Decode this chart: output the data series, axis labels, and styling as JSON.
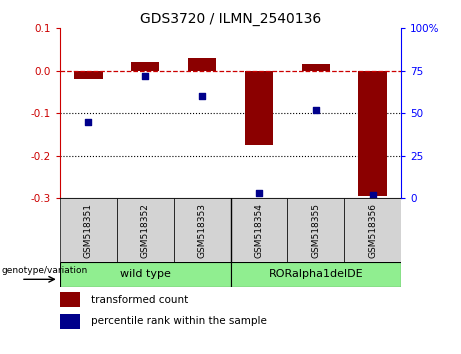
{
  "title": "GDS3720 / ILMN_2540136",
  "samples": [
    "GSM518351",
    "GSM518352",
    "GSM518353",
    "GSM518354",
    "GSM518355",
    "GSM518356"
  ],
  "transformed_count": [
    -0.02,
    0.02,
    0.03,
    -0.175,
    0.015,
    -0.295
  ],
  "percentile_rank": [
    45,
    72,
    60,
    3,
    52,
    2
  ],
  "bar_color": "#8B0000",
  "dot_color": "#00008B",
  "ylim_left": [
    -0.3,
    0.1
  ],
  "ylim_right": [
    0,
    100
  ],
  "yticks_left": [
    0.1,
    0.0,
    -0.1,
    -0.2,
    -0.3
  ],
  "yticks_right": [
    100,
    75,
    50,
    25,
    0
  ],
  "hline_y": 0,
  "dotted_lines": [
    -0.1,
    -0.2
  ],
  "group1_label": "wild type",
  "group2_label": "RORalpha1delDE",
  "group_color": "#90EE90",
  "geno_label": "genotype/variation",
  "legend_entries": [
    "transformed count",
    "percentile rank within the sample"
  ],
  "bar_width": 0.5
}
